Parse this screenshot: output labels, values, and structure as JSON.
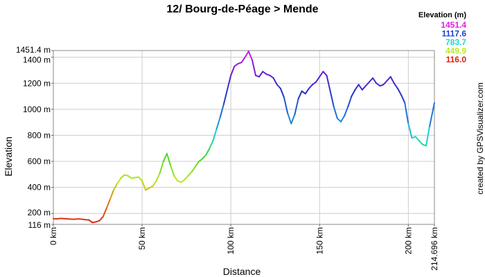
{
  "chart_data": {
    "type": "line",
    "title": "12/ Bourg-de-Péage > Mende",
    "xlabel": "Distance",
    "ylabel": "Elevation",
    "xlim": [
      0,
      214.696
    ],
    "ylim": [
      116.0,
      1451.4
    ],
    "x_ticks": [
      {
        "value": 0,
        "label": "0 km"
      },
      {
        "value": 50,
        "label": "50 km"
      },
      {
        "value": 100,
        "label": "100 km"
      },
      {
        "value": 150,
        "label": "150 km"
      },
      {
        "value": 200,
        "label": "200 km"
      },
      {
        "value": 214.696,
        "label": "214.696 km"
      }
    ],
    "y_ticks": [
      {
        "value": 116.0,
        "label": "116 m"
      },
      {
        "value": 200,
        "label": "200 m"
      },
      {
        "value": 400,
        "label": "400 m"
      },
      {
        "value": 600,
        "label": "600 m"
      },
      {
        "value": 800,
        "label": "800 m"
      },
      {
        "value": 1000,
        "label": "1000 m"
      },
      {
        "value": 1200,
        "label": "1200 m"
      },
      {
        "value": 1400,
        "label": "1400 m"
      },
      {
        "value": 1451.4,
        "label": "1451.4 m"
      }
    ],
    "grid": true,
    "legend": {
      "title": "Elevation (m)",
      "placement": "top-right",
      "entries": [
        {
          "label": "1451.4",
          "color": "#e020e0"
        },
        {
          "label": "1117.6",
          "color": "#2040d0"
        },
        {
          "label": "783.7",
          "color": "#20d8c8"
        },
        {
          "label": "449.9",
          "color": "#b8e820"
        },
        {
          "label": "116.0",
          "color": "#e02010"
        }
      ]
    },
    "credit": "created by GPSVisualizer.com",
    "series": [
      {
        "x": [
          0,
          2,
          4,
          6,
          8,
          10,
          12,
          14,
          16,
          18,
          20,
          22,
          24,
          26,
          28,
          30,
          32,
          34,
          36,
          38,
          40,
          42,
          44,
          46,
          48,
          50,
          52,
          54,
          56,
          58,
          60,
          62,
          64,
          66,
          68,
          70,
          72,
          74,
          76,
          78,
          80,
          82,
          84,
          86,
          88,
          90,
          92,
          94,
          96,
          98,
          100,
          102,
          104,
          106,
          108,
          110,
          112,
          114,
          116,
          118,
          120,
          122,
          124,
          126,
          128,
          130,
          132,
          134,
          136,
          138,
          140,
          142,
          144,
          146,
          148,
          150,
          152,
          154,
          156,
          158,
          160,
          162,
          164,
          166,
          168,
          170,
          172,
          174,
          176,
          178,
          180,
          182,
          184,
          186,
          188,
          190,
          192,
          194,
          196,
          198,
          200,
          202,
          204,
          206,
          208,
          210,
          212,
          214.696
        ],
        "y": [
          160,
          158,
          162,
          160,
          158,
          156,
          155,
          158,
          156,
          152,
          150,
          130,
          135,
          145,
          175,
          240,
          310,
          380,
          430,
          470,
          495,
          490,
          470,
          475,
          480,
          450,
          380,
          395,
          410,
          450,
          510,
          600,
          660,
          570,
          490,
          450,
          440,
          460,
          490,
          520,
          560,
          600,
          620,
          650,
          700,
          760,
          850,
          940,
          1040,
          1150,
          1260,
          1330,
          1350,
          1360,
          1400,
          1445,
          1380,
          1260,
          1250,
          1290,
          1270,
          1260,
          1240,
          1190,
          1160,
          1090,
          970,
          890,
          960,
          1080,
          1140,
          1120,
          1160,
          1190,
          1210,
          1250,
          1290,
          1260,
          1140,
          1020,
          930,
          905,
          950,
          1020,
          1100,
          1150,
          1190,
          1150,
          1180,
          1210,
          1240,
          1200,
          1180,
          1190,
          1220,
          1250,
          1200,
          1160,
          1110,
          1050,
          890,
          780,
          790,
          760,
          730,
          720,
          870,
          1050
        ]
      }
    ]
  }
}
